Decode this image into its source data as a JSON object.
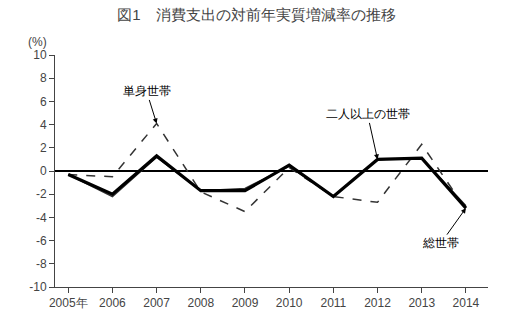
{
  "chart_data": {
    "type": "line",
    "title": "図1　消費支出の対前年実質増減率の推移",
    "ylabel": "(%)",
    "x": [
      2005,
      2006,
      2007,
      2008,
      2009,
      2010,
      2011,
      2012,
      2013,
      2014
    ],
    "xlim": [
      2004.7,
      2014.5
    ],
    "xticks": [
      {
        "value": 2005,
        "label": "2005年"
      },
      2006,
      2007,
      2008,
      2009,
      2010,
      2011,
      2012,
      2013,
      2014
    ],
    "ylim": [
      -10,
      10
    ],
    "yticks": [
      -10,
      -8,
      -6,
      -4,
      -2,
      0,
      2,
      4,
      6,
      8,
      10
    ],
    "grid": false,
    "series": [
      {
        "name": "単身世帯",
        "color": "#333333",
        "line_style": "dashed",
        "values": [
          -0.3,
          -0.5,
          4.1,
          -1.8,
          -3.5,
          0.3,
          -2.2,
          -2.7,
          2.3,
          -3.3
        ]
      },
      {
        "name": "二人以上の世帯",
        "color": "#333333",
        "line_style": "solid",
        "values": [
          -0.3,
          -2.2,
          1.2,
          -1.7,
          -1.5,
          0.4,
          -2.2,
          1.0,
          1.1,
          -3.0
        ]
      },
      {
        "name": "総世帯",
        "color": "#000000",
        "line_style": "solid",
        "values": [
          -0.3,
          -2.0,
          1.3,
          -1.7,
          -1.7,
          0.5,
          -2.2,
          1.0,
          1.1,
          -3.2
        ]
      }
    ]
  }
}
